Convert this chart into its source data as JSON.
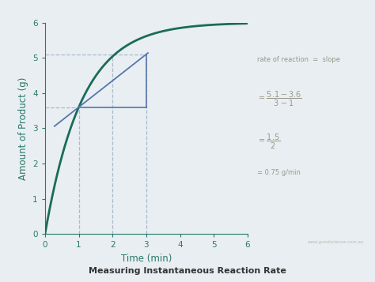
{
  "title": "Measuring Instantaneous Reaction Rate",
  "xlabel": "Time (min)",
  "ylabel": "Amount of Product (g)",
  "xlim": [
    0,
    6
  ],
  "ylim": [
    0,
    6
  ],
  "xticks": [
    0,
    1,
    2,
    3,
    4,
    5,
    6
  ],
  "yticks": [
    0,
    1,
    2,
    3,
    4,
    5,
    6
  ],
  "curve_color": "#1a6b5a",
  "tangent_color": "#5577aa",
  "tangent_x1": 1.0,
  "tangent_y1": 3.6,
  "tangent_x2": 3.0,
  "tangent_y2": 5.1,
  "dashed_color": "#aabbcc",
  "text_color": "#999988",
  "axis_label_color": "#2a7a6a",
  "tick_color": "#2a7a6a",
  "spine_color": "#2a7a6a",
  "background_color": "#e8eef2",
  "title_bg_color": "#d8dde0",
  "watermark": "www.goodscience.com.au",
  "curve_A": 6.0,
  "curve_b": 0.916
}
